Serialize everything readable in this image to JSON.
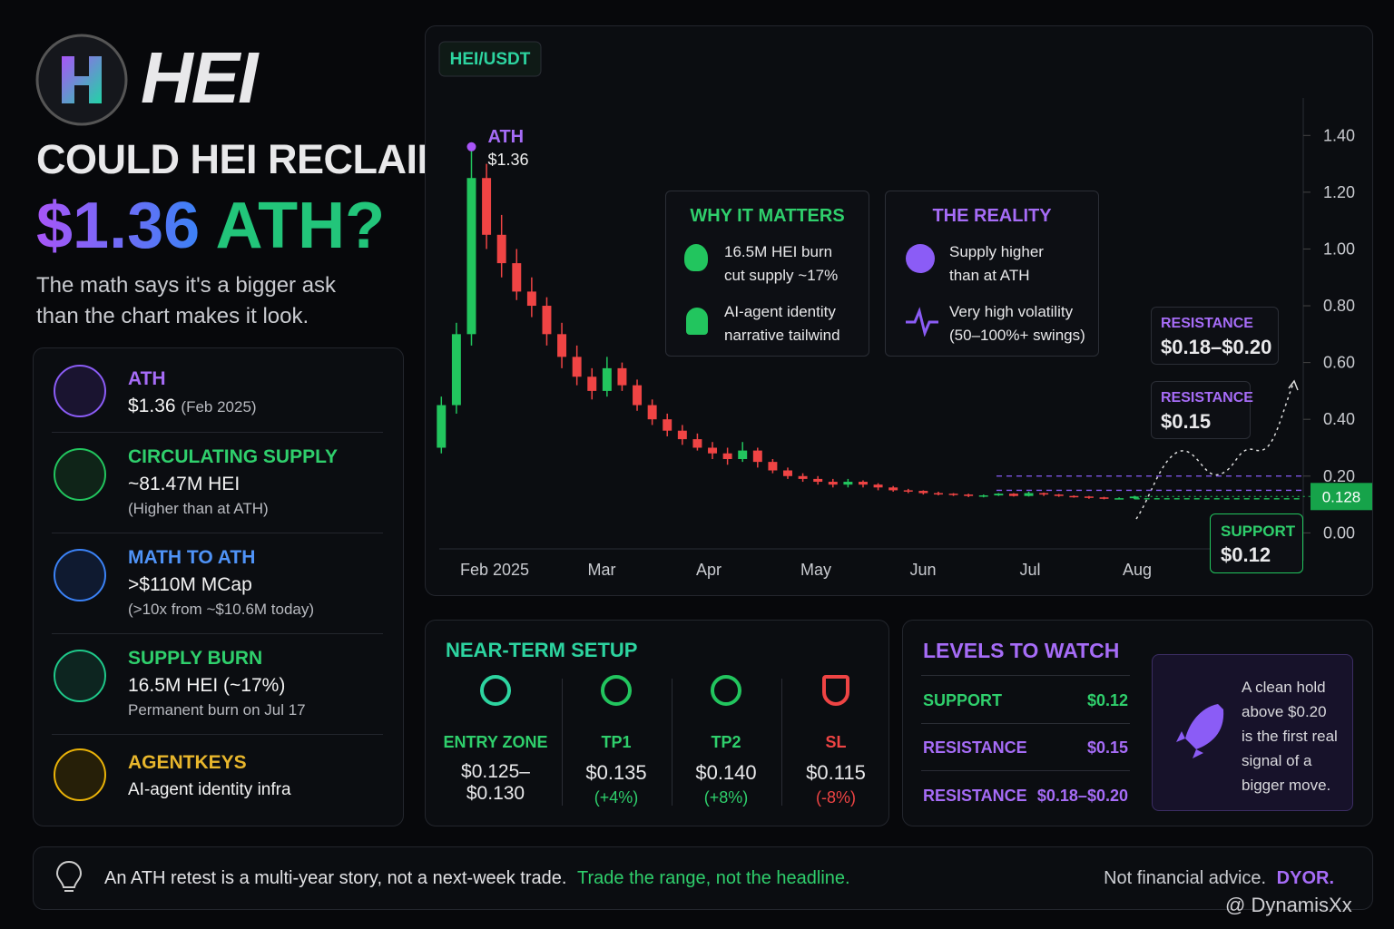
{
  "header": {
    "logo": "HEI",
    "headline": "COULD HEI RECLAIM",
    "headline_price": "$1.36",
    "headline_ath": "ATH?",
    "subtitle": "The math says it's a bigger ask than the chart makes it look."
  },
  "facts": [
    {
      "label": "ATH",
      "value": "$1.36",
      "note": "(Feb 2025)"
    },
    {
      "label": "CIRCULATING SUPPLY",
      "value": "~81.47M HEI",
      "note": "(Higher than at ATH)"
    },
    {
      "label": "MATH TO ATH",
      "value": ">$110M MCap",
      "note": "(>10x from ~$10.6M today)"
    },
    {
      "label": "SUPPLY BURN",
      "value": "16.5M HEI (~17%)",
      "note": "Permanent burn on Jul 17"
    },
    {
      "label": "AGENTKEYS",
      "value": "AI-agent identity infra"
    }
  ],
  "chart_data": {
    "type": "candlestick",
    "pair": "HEI/USDT",
    "x_labels": [
      "Feb 2025",
      "Mar",
      "Apr",
      "May",
      "Jun",
      "Jul",
      "Aug"
    ],
    "open": [
      0.3,
      0.45,
      0.7,
      1.25,
      1.05,
      0.95,
      0.85,
      0.8,
      0.7,
      0.62,
      0.55,
      0.5,
      0.58,
      0.52,
      0.45,
      0.4,
      0.36,
      0.33,
      0.3,
      0.28,
      0.26,
      0.29,
      0.25,
      0.22,
      0.2,
      0.19,
      0.18,
      0.17,
      0.18,
      0.17,
      0.16,
      0.15,
      0.148,
      0.14,
      0.138,
      0.135,
      0.13,
      0.132,
      0.138,
      0.13,
      0.14,
      0.135,
      0.13,
      0.128,
      0.125,
      0.12,
      0.122
    ],
    "high": [
      0.48,
      0.74,
      1.36,
      1.3,
      1.12,
      1.0,
      0.9,
      0.83,
      0.74,
      0.66,
      0.58,
      0.62,
      0.6,
      0.54,
      0.47,
      0.42,
      0.38,
      0.35,
      0.32,
      0.3,
      0.32,
      0.3,
      0.26,
      0.23,
      0.21,
      0.2,
      0.19,
      0.19,
      0.185,
      0.175,
      0.165,
      0.155,
      0.15,
      0.145,
      0.14,
      0.138,
      0.135,
      0.14,
      0.14,
      0.145,
      0.142,
      0.137,
      0.132,
      0.13,
      0.127,
      0.125,
      0.13
    ],
    "low": [
      0.28,
      0.42,
      0.66,
      1.0,
      0.9,
      0.82,
      0.76,
      0.66,
      0.58,
      0.52,
      0.47,
      0.48,
      0.5,
      0.43,
      0.38,
      0.34,
      0.31,
      0.29,
      0.26,
      0.24,
      0.25,
      0.23,
      0.21,
      0.19,
      0.18,
      0.17,
      0.16,
      0.16,
      0.16,
      0.15,
      0.145,
      0.14,
      0.135,
      0.132,
      0.13,
      0.126,
      0.125,
      0.13,
      0.128,
      0.128,
      0.13,
      0.127,
      0.124,
      0.12,
      0.118,
      0.118,
      0.12
    ],
    "close": [
      0.45,
      0.7,
      1.25,
      1.05,
      0.95,
      0.85,
      0.8,
      0.7,
      0.62,
      0.55,
      0.5,
      0.58,
      0.52,
      0.45,
      0.4,
      0.36,
      0.33,
      0.3,
      0.28,
      0.26,
      0.29,
      0.25,
      0.22,
      0.2,
      0.19,
      0.18,
      0.17,
      0.18,
      0.17,
      0.16,
      0.15,
      0.148,
      0.14,
      0.138,
      0.135,
      0.13,
      0.132,
      0.138,
      0.13,
      0.14,
      0.135,
      0.13,
      0.128,
      0.125,
      0.12,
      0.122,
      0.128
    ],
    "colors": {
      "up": "#22c55e",
      "down": "#ef4444"
    },
    "ylim": [
      -0.05,
      1.5
    ],
    "yticks": [
      {
        "value": 0,
        "label": "0.00"
      },
      {
        "value": 0.2,
        "label": "0.20"
      },
      {
        "value": 0.4,
        "label": "0.40"
      },
      {
        "value": 0.6,
        "label": "0.60"
      },
      {
        "value": 0.8,
        "label": "0.80"
      },
      {
        "value": 1,
        "label": "1.00"
      },
      {
        "value": 1.2,
        "label": "1.20"
      },
      {
        "value": 1.4,
        "label": "1.40"
      }
    ],
    "ath": {
      "label": "ATH",
      "value": 1.36,
      "value_label": "$1.36"
    },
    "last_price": 0.128,
    "resistance_zones": [
      {
        "label": "RESISTANCE",
        "value_label": "$0.18–$0.20",
        "low": 0.18,
        "high": 0.2
      },
      {
        "label": "RESISTANCE",
        "value_label": "$0.15",
        "value": 0.15
      }
    ],
    "support": {
      "label": "SUPPORT",
      "value_label": "$0.12",
      "value": 0.12
    }
  },
  "callouts": [
    {
      "title": "WHY IT MATTERS",
      "items": [
        "16.5M HEI burn cut supply ~17%",
        "AI-agent identity narrative tailwind"
      ]
    },
    {
      "title": "THE REALITY",
      "items": [
        "Supply higher than at ATH",
        "Very high volatility (50–100%+ swings)"
      ]
    }
  ],
  "near_term_setup": {
    "title": "NEAR-TERM SETUP",
    "items": [
      {
        "label": "ENTRY ZONE",
        "value": "$0.125–$0.130"
      },
      {
        "label": "TP1",
        "value": "$0.135",
        "change": "(+4%)"
      },
      {
        "label": "TP2",
        "value": "$0.140",
        "change": "(+8%)"
      },
      {
        "label": "SL",
        "value": "$0.115",
        "change": "(-8%)"
      }
    ]
  },
  "levels_to_watch": {
    "title": "LEVELS TO WATCH",
    "rows": [
      [
        "SUPPORT",
        "$0.12"
      ],
      [
        "RESISTANCE",
        "$0.15"
      ],
      [
        "RESISTANCE",
        "$0.18–$0.20"
      ]
    ],
    "note": "A clean hold above $0.20 is the first real signal of a bigger move."
  },
  "footer": {
    "text": "An ATH retest is a multi-year story, not a next-week trade.",
    "highlight": "Trade the range, not the headline.",
    "disclaimer": "Not financial advice.",
    "dyor": "DYOR.",
    "watermark": "@ DynamisXx"
  }
}
